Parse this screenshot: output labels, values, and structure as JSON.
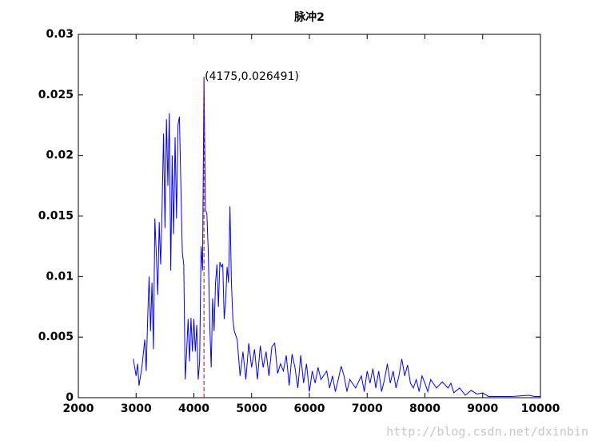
{
  "chart_data": {
    "type": "line",
    "title": "脉冲2",
    "x": [
      2950,
      3000,
      3025,
      3050,
      3100,
      3150,
      3175,
      3200,
      3225,
      3250,
      3275,
      3300,
      3325,
      3350,
      3375,
      3400,
      3425,
      3450,
      3475,
      3500,
      3525,
      3550,
      3575,
      3600,
      3625,
      3650,
      3675,
      3700,
      3725,
      3750,
      3775,
      3800,
      3825,
      3850,
      3875,
      3900,
      3925,
      3950,
      3975,
      4000,
      4025,
      4050,
      4075,
      4100,
      4125,
      4150,
      4175,
      4200,
      4225,
      4250,
      4275,
      4300,
      4325,
      4350,
      4375,
      4400,
      4425,
      4450,
      4475,
      4500,
      4525,
      4550,
      4575,
      4600,
      4625,
      4650,
      4675,
      4700,
      4750,
      4800,
      4850,
      4900,
      4950,
      5000,
      5050,
      5100,
      5150,
      5200,
      5250,
      5300,
      5350,
      5400,
      5450,
      5500,
      5550,
      5600,
      5650,
      5700,
      5750,
      5800,
      5850,
      5900,
      5950,
      6000,
      6050,
      6100,
      6150,
      6200,
      6300,
      6350,
      6400,
      6450,
      6500,
      6550,
      6600,
      6650,
      6700,
      6800,
      6900,
      6950,
      7000,
      7050,
      7100,
      7150,
      7200,
      7250,
      7300,
      7350,
      7400,
      7450,
      7500,
      7550,
      7600,
      7650,
      7700,
      7750,
      7800,
      7850,
      7900,
      7950,
      8000,
      8050,
      8100,
      8200,
      8300,
      8400,
      8450,
      8500,
      8600,
      8700,
      8800,
      8900,
      9000,
      9100,
      9500,
      9800,
      9900,
      10000
    ],
    "series": [
      {
        "color": "#0000ff",
        "values": [
          0.0032,
          0.0018,
          0.0028,
          0.001,
          0.0025,
          0.0048,
          0.0022,
          0.0065,
          0.01,
          0.0055,
          0.0095,
          0.004,
          0.0148,
          0.0118,
          0.0085,
          0.0145,
          0.011,
          0.0158,
          0.0218,
          0.014,
          0.023,
          0.0175,
          0.0235,
          0.0105,
          0.02,
          0.0135,
          0.0215,
          0.0148,
          0.0225,
          0.0232,
          0.0175,
          0.012,
          0.011,
          0.0015,
          0.0038,
          0.0065,
          0.003,
          0.0066,
          0.0038,
          0.0065,
          0.0038,
          0.006,
          0.0015,
          0.003,
          0.0125,
          0.0105,
          0.026491,
          0.0155,
          0.0152,
          0.012,
          0.006,
          0.0025,
          0.0082,
          0.0055,
          0.0095,
          0.011,
          0.0075,
          0.0112,
          0.0108,
          0.011,
          0.0065,
          0.008,
          0.0108,
          0.0095,
          0.0158,
          0.0095,
          0.0065,
          0.0055,
          0.0048,
          0.0018,
          0.0038,
          0.0015,
          0.0045,
          0.0025,
          0.004,
          0.0015,
          0.0043,
          0.0025,
          0.0038,
          0.0018,
          0.0042,
          0.0045,
          0.002,
          0.0028,
          0.0022,
          0.0035,
          0.001,
          0.0036,
          0.0025,
          0.0008,
          0.0035,
          0.0012,
          0.0028,
          0.0005,
          0.0022,
          0.0012,
          0.0025,
          0.0015,
          0.0022,
          0.0008,
          0.0018,
          0.0005,
          0.0015,
          0.0026,
          0.0018,
          0.0005,
          0.0015,
          0.0008,
          0.0018,
          0.0005,
          0.0022,
          0.0012,
          0.0024,
          0.0008,
          0.0022,
          0.0005,
          0.0015,
          0.0028,
          0.0012,
          0.0022,
          0.0008,
          0.0018,
          0.0032,
          0.0018,
          0.0027,
          0.0012,
          0.0008,
          0.0015,
          0.0005,
          0.0018,
          0.0012,
          0.0005,
          0.0015,
          0.0008,
          0.0013,
          0.0008,
          0.0012,
          0.0004,
          0.0008,
          0.0002,
          0.0006,
          0.0003,
          0.0004,
          0.0001,
          0.0001,
          0.0002,
          0.0001,
          0.0001
        ]
      }
    ],
    "xlim": [
      2000,
      10000
    ],
    "xticks": [
      2000,
      3000,
      4000,
      5000,
      6000,
      7000,
      8000,
      9000,
      10000
    ],
    "ylim": [
      0,
      0.03
    ],
    "yticks": [
      0,
      0.005,
      0.01,
      0.015,
      0.02,
      0.025,
      0.03
    ],
    "annotation": {
      "text": "(4175,0.026491)",
      "x": 4175,
      "y": 0.026491,
      "color": "#0000ff",
      "line_color": "#cc0000"
    },
    "watermark": "http://blog.csdn.net/dxinbin"
  }
}
